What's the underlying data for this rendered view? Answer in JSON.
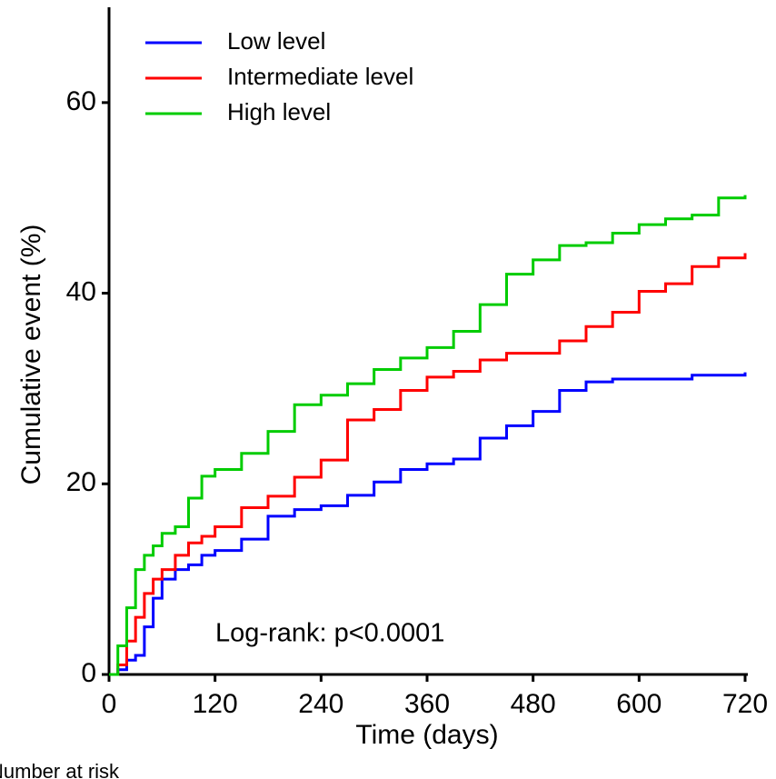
{
  "chart_data": {
    "type": "step",
    "x_label": "Time (days)",
    "y_label": "Cumulative event (%)",
    "annotation": "Log-rank: p<0.0001",
    "footer": "Number at risk",
    "legend": "top-left",
    "xlim": [
      0,
      720
    ],
    "xticks": [
      0,
      120,
      240,
      360,
      480,
      600,
      720
    ],
    "ylim": [
      0,
      70
    ],
    "yticks": [
      0,
      20,
      40,
      60
    ],
    "x": [
      0,
      10,
      20,
      30,
      40,
      50,
      60,
      75,
      90,
      105,
      120,
      150,
      180,
      210,
      240,
      270,
      300,
      330,
      360,
      390,
      420,
      450,
      480,
      510,
      540,
      570,
      600,
      630,
      660,
      690,
      720
    ],
    "series": [
      {
        "name": "Low level",
        "color": "#0000ff",
        "values": [
          0,
          0.5,
          1.5,
          2,
          5,
          8,
          10,
          11,
          11.5,
          12.5,
          13,
          14.2,
          16.6,
          17.3,
          17.7,
          18.8,
          20.2,
          21.5,
          22.1,
          22.6,
          24.8,
          26.1,
          27.6,
          29.8,
          30.7,
          31,
          31,
          31,
          31.4,
          31.4,
          31.7
        ]
      },
      {
        "name": "Intermediate level",
        "color": "#ff0000",
        "values": [
          0,
          1,
          3.5,
          6,
          8.5,
          10,
          11,
          12.5,
          13.8,
          14.5,
          15.5,
          17.5,
          18.7,
          20.7,
          22.5,
          26.7,
          27.8,
          29.8,
          31.2,
          31.8,
          33,
          33.7,
          33.7,
          35,
          36.5,
          38,
          40.2,
          41,
          42.8,
          43.7,
          44.2
        ]
      },
      {
        "name": "High level",
        "color": "#00cc00",
        "values": [
          0,
          3,
          7,
          11,
          12.5,
          13.5,
          14.8,
          15.5,
          18.5,
          20.8,
          21.5,
          23.2,
          25.5,
          28.3,
          29.3,
          30.5,
          32,
          33.2,
          34.3,
          36,
          38.8,
          42,
          43.5,
          45,
          45.3,
          46.3,
          47.2,
          47.8,
          48.2,
          50,
          50.3
        ]
      }
    ]
  }
}
